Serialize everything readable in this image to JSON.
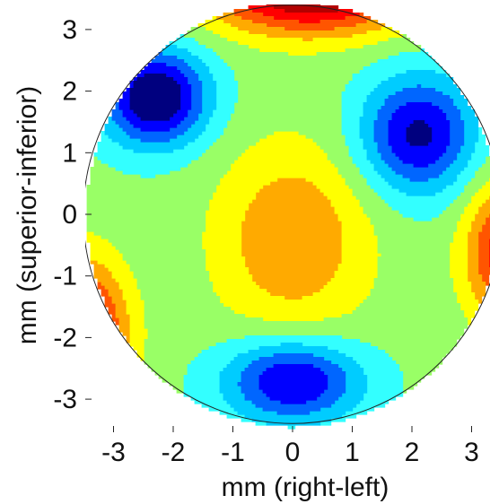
{
  "chart_data": {
    "type": "heatmap",
    "subtype": "filled-contour",
    "title": "",
    "xlabel": "mm (right-left)",
    "ylabel": "mm (superior-inferior)",
    "xlim": [
      -3.5,
      3.5
    ],
    "ylim": [
      -3.5,
      3.5
    ],
    "xticks": [
      -3,
      -2,
      -1,
      0,
      1,
      2,
      3
    ],
    "yticks": [
      -3,
      -2,
      -1,
      0,
      1,
      2,
      3
    ],
    "tick_labels_x": [
      "-3",
      "-2",
      "-1",
      "0",
      "1",
      "2",
      "3"
    ],
    "tick_labels_y": [
      "-3",
      "-2",
      "-1",
      "0",
      "1",
      "2",
      "3"
    ],
    "grid": false,
    "colormap": "jet",
    "aperture_radius_mm": 3.45,
    "contour_levels": 11,
    "colors": [
      "#00007f",
      "#0000ff",
      "#0066ff",
      "#00ccff",
      "#33ffff",
      "#99ff66",
      "#ffff00",
      "#ffaa00",
      "#ff5500",
      "#ff0000",
      "#b30000"
    ],
    "features": [
      {
        "kind": "minimum",
        "x": -2.3,
        "y": 1.9,
        "color": "#00007f"
      },
      {
        "kind": "minimum",
        "x": 2.1,
        "y": 1.3,
        "color": "#0000ff"
      },
      {
        "kind": "minimum",
        "x": 0.0,
        "y": -2.7,
        "color": "#0000ff"
      },
      {
        "kind": "maximum",
        "x": 0.0,
        "y": -0.4,
        "color": "#ffaa00"
      },
      {
        "kind": "maximum",
        "x": 0.3,
        "y": 3.4,
        "color": "#ff0000"
      },
      {
        "kind": "maximum",
        "x": -3.2,
        "y": -1.9,
        "color": "#ff0000"
      },
      {
        "kind": "maximum",
        "x": 3.3,
        "y": -0.5,
        "color": "#ff0000"
      }
    ]
  }
}
